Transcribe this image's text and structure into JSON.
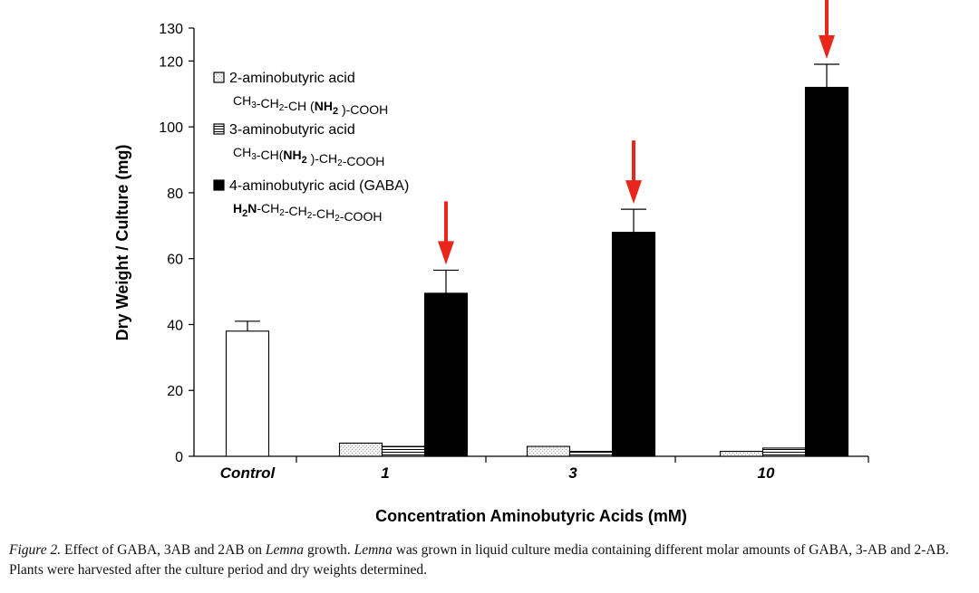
{
  "chart_data": {
    "type": "bar",
    "categories": [
      "Control",
      "1",
      "3",
      "10"
    ],
    "series": [
      {
        "name": "Control",
        "values": [
          38,
          null,
          null,
          null
        ],
        "errors": [
          3,
          null,
          null,
          null
        ],
        "fill": "#ffffff"
      },
      {
        "name": "2-aminobutyric acid",
        "formula": "CH3-CH2-CH (NH2 )-COOH",
        "values": [
          null,
          4,
          3,
          1.5
        ],
        "errors": [
          null,
          0,
          0,
          0
        ],
        "fill": "#e8e8e8"
      },
      {
        "name": "3-aminobutyric acid",
        "formula": "CH3-CH(NH2 )-CH2-COOH",
        "values": [
          null,
          3,
          1.5,
          2.5
        ],
        "errors": [
          null,
          0,
          0,
          0
        ],
        "fill": "#ffffff"
      },
      {
        "name": "4-aminobutyric acid (GABA)",
        "formula": "H2N-CH2-CH2-CH2-COOH",
        "values": [
          null,
          49.5,
          68,
          112
        ],
        "errors": [
          null,
          7,
          7,
          7
        ],
        "fill": "#000000"
      }
    ],
    "xlabel": "Concentration Aminobutyric Acids (mM)",
    "ylabel": "Dry Weight / Culture  (mg)",
    "ylim": [
      0,
      130
    ],
    "yticks": [
      0,
      20,
      40,
      60,
      80,
      100,
      120,
      130
    ],
    "grid": false,
    "legend_position": "top-left",
    "arrow_color": "#e8261c",
    "arrows_on": [
      "1",
      "3",
      "10"
    ]
  },
  "caption": {
    "label": "Figure 2.",
    "text_before_lemna1": "Effect of GABA, 3AB and 2AB on",
    "lemna": "Lemna",
    "text_middle": "growth.",
    "text_after_lemna2": "was grown in liquid culture media containing different molar amounts of GABA, 3-AB and 2-AB. Plants were harvested after the culture period and dry weights determined."
  }
}
